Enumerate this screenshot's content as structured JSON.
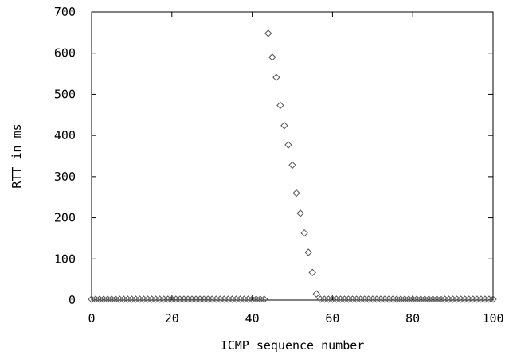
{
  "chart_data": {
    "type": "scatter",
    "xlabel": "ICMP sequence number",
    "ylabel": "RTT in ms",
    "xlim": [
      0,
      100
    ],
    "ylim": [
      0,
      700
    ],
    "xticks": [
      "0",
      "20",
      "40",
      "60",
      "80",
      "100"
    ],
    "yticks": [
      "0",
      "100",
      "200",
      "300",
      "400",
      "500",
      "600",
      "700"
    ],
    "grid": false,
    "marker": "diamond",
    "marker_color": "#555555",
    "series": [
      {
        "x": [
          0,
          1,
          2,
          3,
          4,
          5,
          6,
          7,
          8,
          9,
          10,
          11,
          12,
          13,
          14,
          15,
          16,
          17,
          18,
          19,
          20,
          21,
          22,
          23,
          24,
          25,
          26,
          27,
          28,
          29,
          30,
          31,
          32,
          33,
          34,
          35,
          36,
          37,
          38,
          39,
          40,
          41,
          42,
          43,
          44,
          45,
          46,
          47,
          48,
          49,
          50,
          51,
          52,
          53,
          54,
          55,
          56,
          57,
          58,
          59,
          60,
          61,
          62,
          63,
          64,
          65,
          66,
          67,
          68,
          69,
          70,
          71,
          72,
          73,
          74,
          75,
          76,
          77,
          78,
          79,
          80,
          81,
          82,
          83,
          84,
          85,
          86,
          87,
          88,
          89,
          90,
          91,
          92,
          93,
          94,
          95,
          96,
          97,
          98,
          99,
          100
        ],
        "y": [
          2,
          2,
          2,
          2,
          2,
          2,
          2,
          2,
          2,
          2,
          2,
          2,
          2,
          2,
          2,
          2,
          2,
          2,
          2,
          2,
          2,
          2,
          2,
          2,
          2,
          2,
          2,
          2,
          2,
          2,
          2,
          2,
          2,
          2,
          2,
          2,
          2,
          2,
          2,
          2,
          2,
          2,
          2,
          2,
          648,
          590,
          541,
          473,
          424,
          377,
          328,
          260,
          211,
          163,
          116,
          67,
          15,
          2,
          2,
          2,
          2,
          2,
          2,
          2,
          2,
          2,
          2,
          2,
          2,
          2,
          2,
          2,
          2,
          2,
          2,
          2,
          2,
          2,
          2,
          2,
          2,
          2,
          2,
          2,
          2,
          2,
          2,
          2,
          2,
          2,
          2,
          2,
          2,
          2,
          2,
          2,
          2,
          2,
          2,
          2,
          2
        ]
      }
    ]
  }
}
